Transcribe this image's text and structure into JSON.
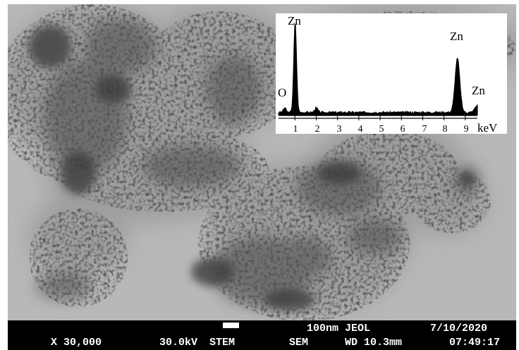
{
  "micrograph": {
    "scale_label": "100nm",
    "vendor": "JEOL",
    "date": "7/10/2020",
    "magnification": "X 30,000",
    "voltage": "30.0kV",
    "mode": "STEM",
    "instrument": "SEM",
    "working_distance": "WD 10.3mm",
    "time": "07:49:17"
  },
  "eds_inset": {
    "x_axis_label": "keV",
    "x_ticks": [
      "1",
      "2",
      "3",
      "4",
      "5",
      "6",
      "7",
      "8",
      "9"
    ],
    "peaks": [
      {
        "label": "Zn",
        "energy_kev": 1.01,
        "relative_height": 1.0
      },
      {
        "label": "O",
        "energy_kev": 0.52,
        "relative_height": 0.05
      },
      {
        "label": "Zn",
        "energy_kev": 8.63,
        "relative_height": 0.6
      },
      {
        "label": "Zn",
        "energy_kev": 9.57,
        "relative_height": 0.08
      }
    ]
  },
  "colors": {
    "background": "#b5b5b5",
    "particles": "#2a2a2a",
    "databar": "#000000",
    "databar_text": "#ffffff"
  }
}
